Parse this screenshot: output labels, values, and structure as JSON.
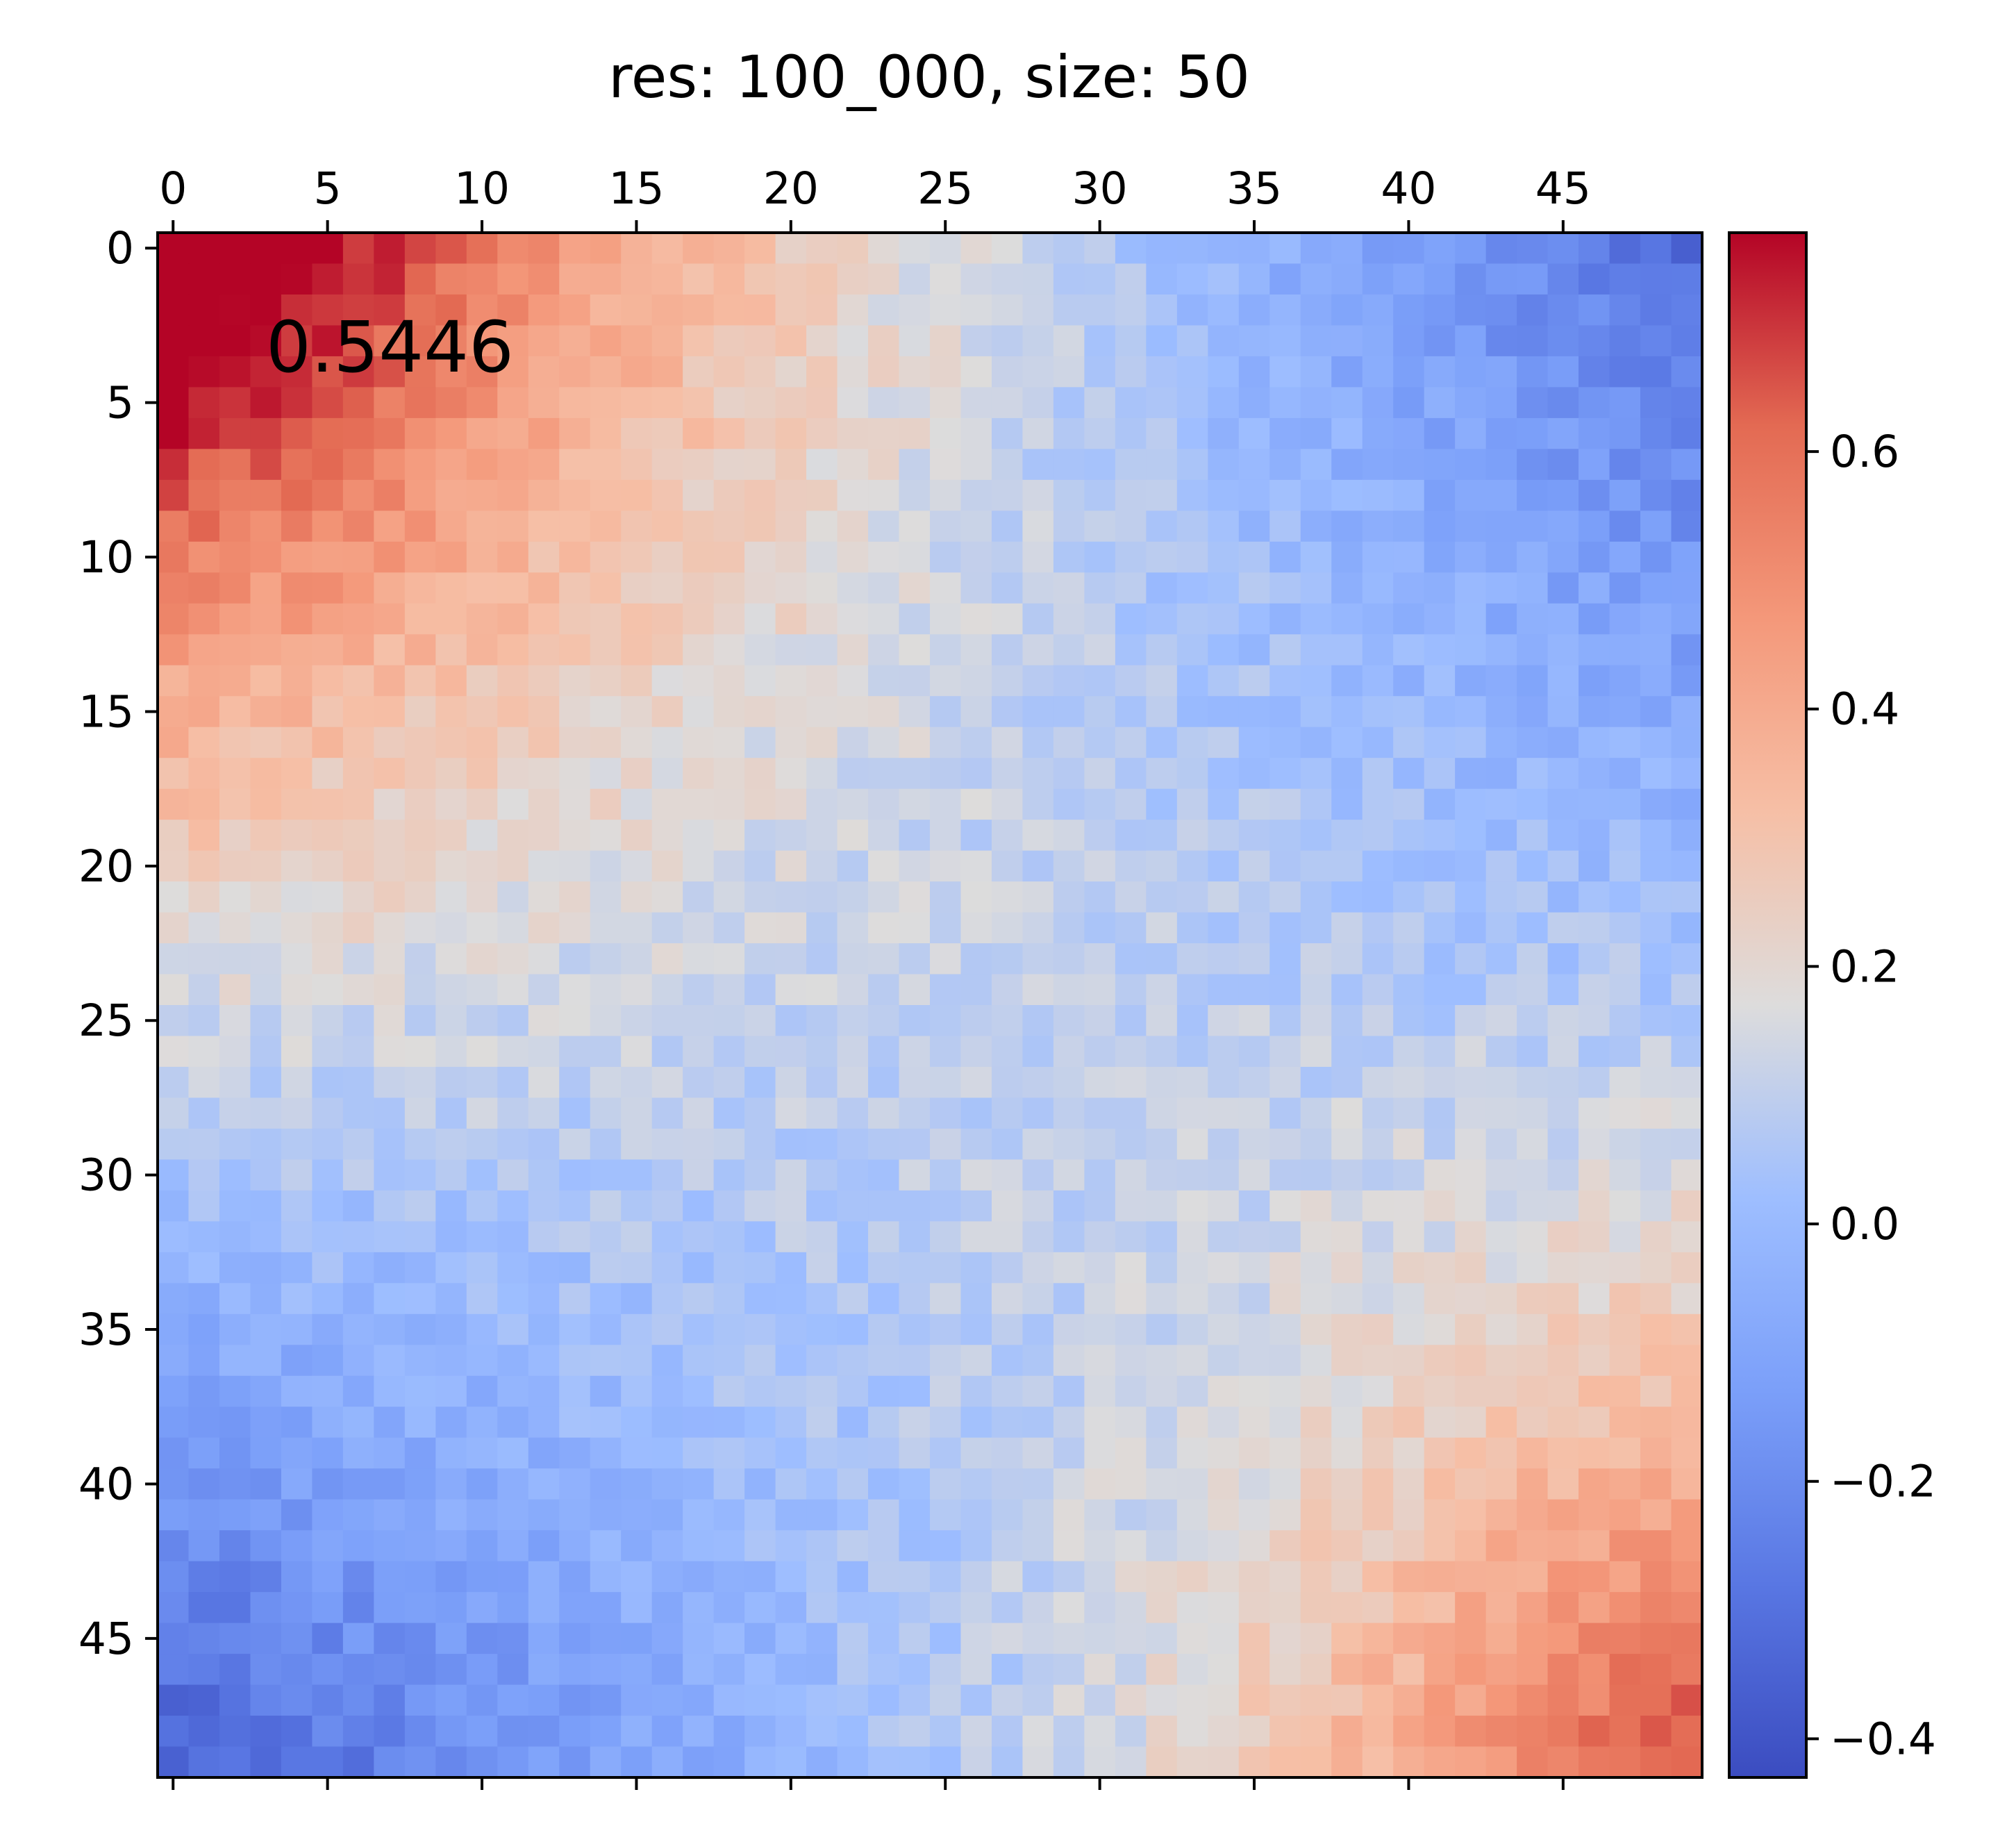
{
  "chart_data": {
    "type": "heatmap",
    "title": "res: 100_000, size: 50",
    "annotation": "0.5446",
    "size": 50,
    "colormap": "coolwarm",
    "vmin": -0.43,
    "vmax": 0.77,
    "x_ticks": [
      "0",
      "5",
      "10",
      "15",
      "20",
      "25",
      "30",
      "35",
      "40",
      "45"
    ],
    "y_ticks": [
      "0",
      "5",
      "10",
      "15",
      "20",
      "25",
      "30",
      "35",
      "40",
      "45"
    ],
    "x_tick_values": [
      0,
      5,
      10,
      15,
      20,
      25,
      30,
      35,
      40,
      45
    ],
    "y_tick_values": [
      0,
      5,
      10,
      15,
      20,
      25,
      30,
      35,
      40,
      45
    ],
    "x_axis_position": "top",
    "colorbar": {
      "position": "right",
      "ticks": [
        "0.6",
        "0.4",
        "0.2",
        "0.0",
        "−0.2",
        "−0.4"
      ],
      "tick_values": [
        0.6,
        0.4,
        0.2,
        0.0,
        -0.2,
        -0.4
      ]
    },
    "value_pattern": {
      "description_values": {
        "top_left_peak": 0.77,
        "top_right_min": -0.38,
        "bottom_left_min": -0.43,
        "bottom_right_peak": 0.52,
        "center": 0.05
      }
    }
  }
}
